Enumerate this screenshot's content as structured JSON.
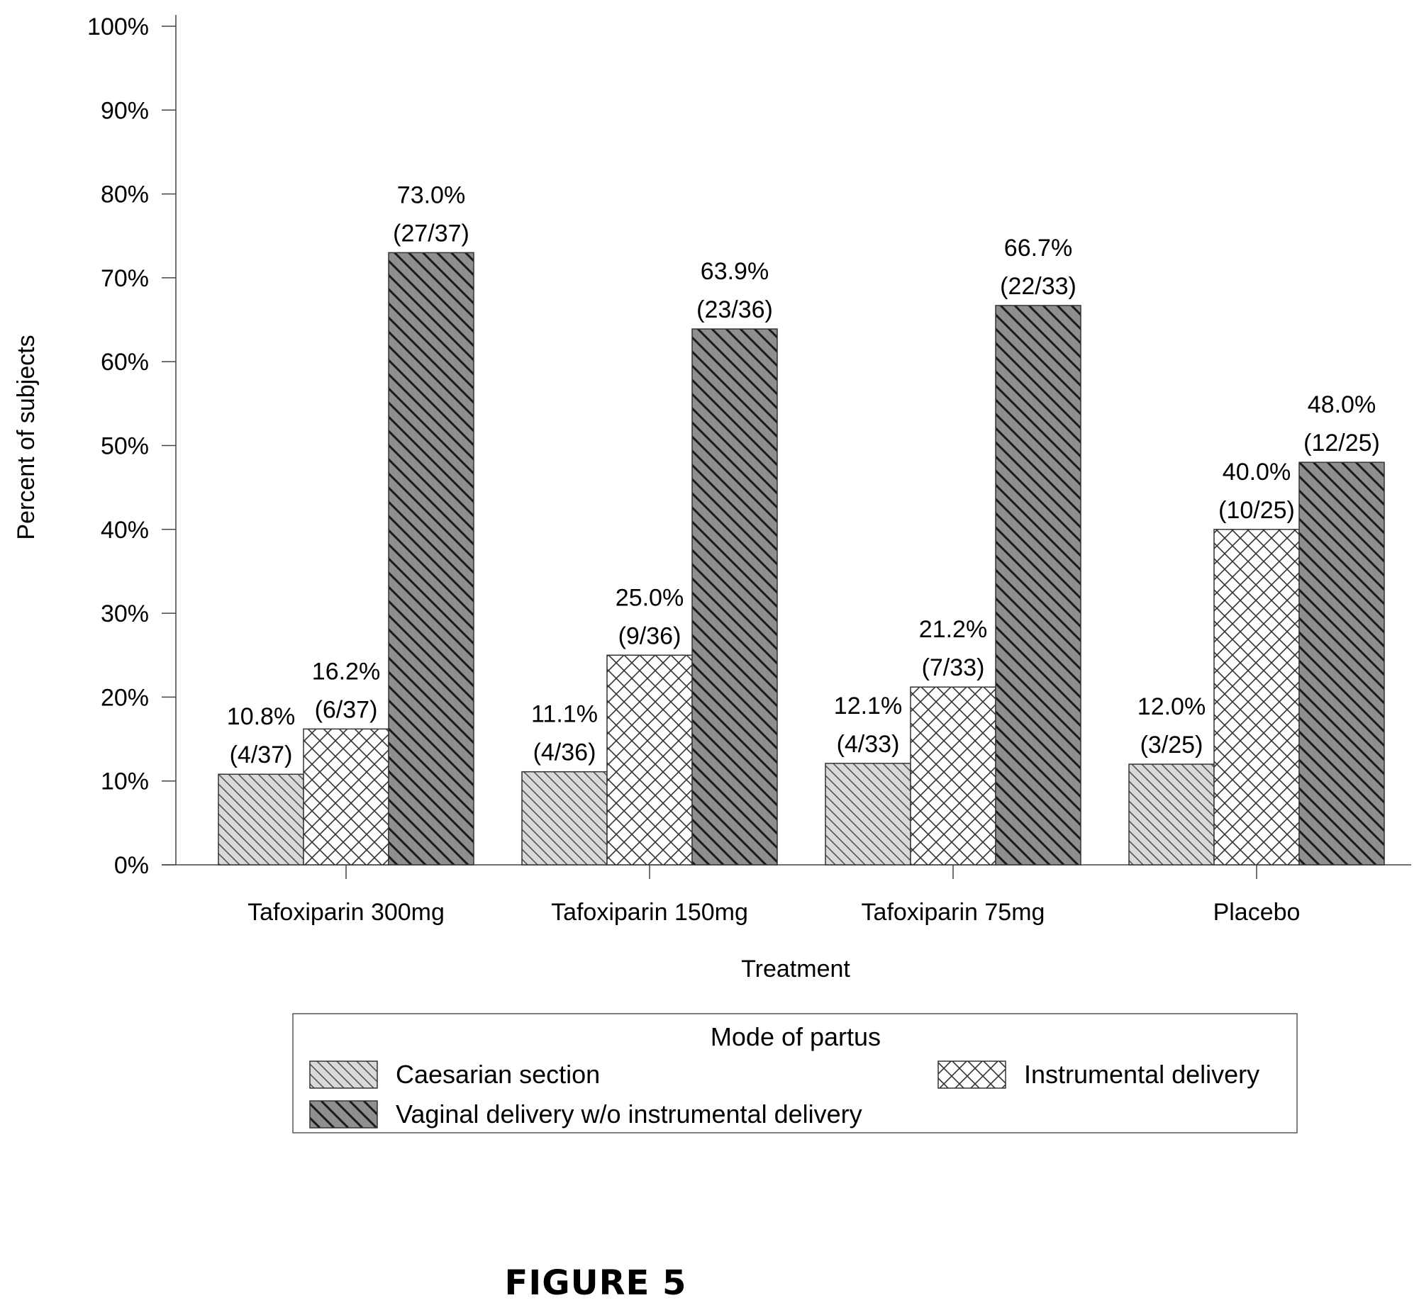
{
  "chart_data": {
    "type": "bar",
    "categories": [
      "Tafoxiparin 300mg",
      "Tafoxiparin 150mg",
      "Tafoxiparin 75mg",
      "Placebo"
    ],
    "series": [
      {
        "name": "Caesarian section",
        "values": [
          10.8,
          11.1,
          12.1,
          12.0
        ],
        "labels": [
          "10.8%",
          "11.1%",
          "12.1%",
          "12.0%"
        ],
        "counts": [
          "(4/37)",
          "(4/36)",
          "(4/33)",
          "(3/25)"
        ],
        "pattern": "light-diagonal-hatch",
        "color": "#d8d8d8"
      },
      {
        "name": "Instrumental delivery",
        "values": [
          16.2,
          25.0,
          21.2,
          40.0
        ],
        "labels": [
          "16.2%",
          "25.0%",
          "21.2%",
          "40.0%"
        ],
        "counts": [
          "(6/37)",
          "(9/36)",
          "(7/33)",
          "(10/25)"
        ],
        "pattern": "crosshatch",
        "color": "#ffffff"
      },
      {
        "name": "Vaginal delivery w/o instrumental delivery",
        "values": [
          73.0,
          63.9,
          66.7,
          48.0
        ],
        "labels": [
          "73.0%",
          "63.9%",
          "66.7%",
          "48.0%"
        ],
        "counts": [
          "(27/37)",
          "(23/36)",
          "(22/33)",
          "(12/25)"
        ],
        "pattern": "dark-diagonal-hatch",
        "color": "#8c8c8c"
      }
    ],
    "xlabel": "Treatment",
    "ylabel": "Percent of subjects",
    "ylim": [
      0,
      100
    ],
    "yticks": [
      "0%",
      "10%",
      "20%",
      "30%",
      "40%",
      "50%",
      "60%",
      "70%",
      "80%",
      "90%",
      "100%"
    ],
    "legend_title": "Mode of partus",
    "legend_position": "bottom",
    "grid": false
  },
  "caption": "FIGURE 5"
}
